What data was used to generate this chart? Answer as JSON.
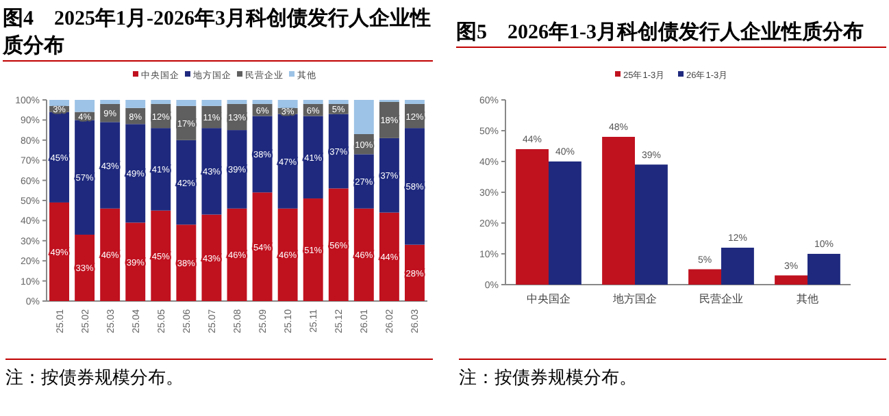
{
  "chart_data": [
    {
      "type": "bar",
      "title": "图4　2025年1月-2026年3月科创债发行人企业性质分布",
      "stacked": true,
      "legend": "top",
      "categories": [
        "25.01",
        "25.02",
        "25.03",
        "25.04",
        "25.05",
        "25.06",
        "25.07",
        "25.08",
        "25.09",
        "25.10",
        "25.11",
        "25.12",
        "26.01",
        "26.02",
        "26.03"
      ],
      "series": [
        {
          "name": "中央国企",
          "color": "#c0111f",
          "values": [
            49,
            33,
            46,
            39,
            45,
            38,
            43,
            46,
            54,
            46,
            51,
            56,
            46,
            44,
            28
          ],
          "value_labels": [
            "49%",
            "33%",
            "46%",
            "39%",
            "45%",
            "38%",
            "43%",
            "46%",
            "54%",
            "46%",
            "51%",
            "56%",
            "46%",
            "44%",
            "28%"
          ]
        },
        {
          "name": "地方国企",
          "color": "#1f2a7e",
          "values": [
            45,
            57,
            43,
            49,
            41,
            42,
            43,
            39,
            38,
            47,
            41,
            37,
            27,
            37,
            58
          ],
          "value_labels": [
            "45%",
            "57%",
            "43%",
            "49%",
            "41%",
            "42%",
            "43%",
            "39%",
            "38%",
            "47%",
            "41%",
            "37%",
            "27%",
            "37%",
            "58%"
          ]
        },
        {
          "name": "民营企业",
          "color": "#5f5f5f",
          "values": [
            3,
            4,
            9,
            8,
            12,
            17,
            11,
            13,
            6,
            3,
            6,
            5,
            10,
            18,
            12
          ],
          "value_labels": [
            "3%",
            "4%",
            "9%",
            "8%",
            "12%",
            "17%",
            "11%",
            "13%",
            "6%",
            "3%",
            "6%",
            "5%",
            "10%",
            "18%",
            "12%"
          ]
        },
        {
          "name": "其他",
          "color": "#9dc3e6",
          "values": [
            3,
            6,
            2,
            4,
            2,
            3,
            3,
            2,
            2,
            4,
            2,
            2,
            17,
            1,
            2
          ]
        }
      ],
      "ylim": [
        0,
        100
      ],
      "yticks": [
        {
          "value": 0,
          "label": "0%"
        },
        {
          "value": 10,
          "label": "10%"
        },
        {
          "value": 20,
          "label": "20%"
        },
        {
          "value": 30,
          "label": "30%"
        },
        {
          "value": 40,
          "label": "40%"
        },
        {
          "value": 50,
          "label": "50%"
        },
        {
          "value": 60,
          "label": "60%"
        },
        {
          "value": 70,
          "label": "70%"
        },
        {
          "value": 80,
          "label": "80%"
        },
        {
          "value": 90,
          "label": "90%"
        },
        {
          "value": 100,
          "label": "100%"
        }
      ],
      "annotations": [
        "注：按债券规模分布。"
      ]
    },
    {
      "type": "bar",
      "title": "图5　2026年1-3月科创债发行人企业性质分布",
      "legend": "top",
      "categories": [
        "中央国企",
        "地方国企",
        "民营企业",
        "其他"
      ],
      "series": [
        {
          "name": "25年1-3月",
          "color": "#c0111f",
          "values": [
            44,
            48,
            5,
            3
          ],
          "value_labels": [
            "44%",
            "48%",
            "5%",
            "3%"
          ]
        },
        {
          "name": "26年1-3月",
          "color": "#1f2a7e",
          "values": [
            40,
            39,
            12,
            10
          ],
          "value_labels": [
            "40%",
            "39%",
            "12%",
            "10%"
          ]
        }
      ],
      "ylim": [
        0,
        60
      ],
      "yticks": [
        {
          "value": 0,
          "label": "0%"
        },
        {
          "value": 10,
          "label": "10%"
        },
        {
          "value": 20,
          "label": "20%"
        },
        {
          "value": 30,
          "label": "30%"
        },
        {
          "value": 40,
          "label": "40%"
        },
        {
          "value": 50,
          "label": "50%"
        },
        {
          "value": 60,
          "label": "60%"
        }
      ],
      "annotations": [
        "注：按债券规模分布。"
      ]
    }
  ]
}
